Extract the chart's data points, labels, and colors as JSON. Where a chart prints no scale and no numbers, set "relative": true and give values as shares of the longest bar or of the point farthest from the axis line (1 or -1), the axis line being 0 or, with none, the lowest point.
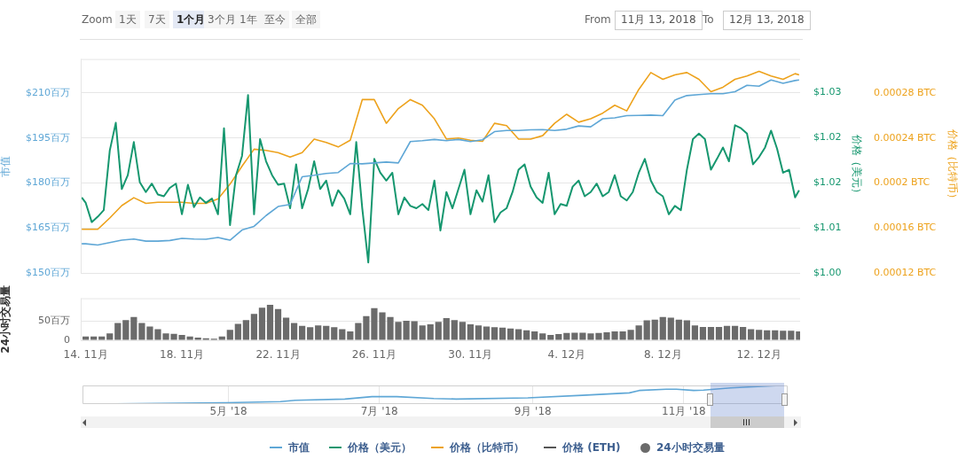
{
  "chart_data": [
    {
      "type": "other",
      "annotations": [
        "Zoom",
        "1天",
        "7天",
        "1个月",
        "3个月",
        "1年",
        "至今",
        "全部",
        "From",
        "11月 13, 2018",
        "To",
        "12月 13, 2018"
      ]
    },
    {
      "type": "line",
      "ylabel": "市值",
      "y2label": "价格（美元）",
      "y3label": "价格（比特币）",
      "xlim": [
        "2018-11-13T19:00",
        "2018-12-13T17:00"
      ],
      "ylim": [
        150,
        221.25
      ],
      "yticks": [
        {
          "value": 150,
          "label": "$150百万"
        },
        {
          "value": 165,
          "label": "$165百万"
        },
        {
          "value": 180,
          "label": "$180百万"
        },
        {
          "value": 195,
          "label": "$195百万"
        },
        {
          "value": 210,
          "label": "$210百万"
        }
      ],
      "y2lim": [
        1.0,
        1.0356
      ],
      "y2ticks": [
        {
          "value": 1.0,
          "label": "$1.00"
        },
        {
          "value": 1.0075,
          "label": "$1.01"
        },
        {
          "value": 1.015,
          "label": "$1.02"
        },
        {
          "value": 1.0225,
          "label": "$1.02"
        },
        {
          "value": 1.03,
          "label": "$1.03"
        }
      ],
      "y3lim": [
        0.00012,
        0.00031
      ],
      "y3ticks": [
        {
          "value": 0.00012,
          "label": "0.00012 BTC"
        },
        {
          "value": 0.00016,
          "label": "0.00016 BTC"
        },
        {
          "value": 0.0002,
          "label": "0.0002 BTC"
        },
        {
          "value": 0.00024,
          "label": "0.00024 BTC"
        },
        {
          "value": 0.00028,
          "label": "0.00028 BTC"
        }
      ],
      "grid": "y",
      "legend": "bottom",
      "marker": "none",
      "tick_labels": "y",
      "x": [
        "2018-11-13T20:00",
        "2018-11-14T00:00",
        "2018-11-14T12:00",
        "2018-11-15T00:00",
        "2018-11-15T12:00",
        "2018-11-16T00:00",
        "2018-11-16T12:00",
        "2018-11-17T00:00",
        "2018-11-17T12:00",
        "2018-11-18T00:00",
        "2018-11-18T12:00",
        "2018-11-19T00:00",
        "2018-11-19T12:00",
        "2018-11-20T00:00",
        "2018-11-20T12:00",
        "2018-11-21T00:00",
        "2018-11-21T12:00",
        "2018-11-22T00:00",
        "2018-11-22T12:00",
        "2018-11-23T00:00",
        "2018-11-23T12:00",
        "2018-11-24T00:00",
        "2018-11-24T12:00",
        "2018-11-25T00:00",
        "2018-11-25T12:00",
        "2018-11-26T00:00",
        "2018-11-26T12:00",
        "2018-11-27T00:00",
        "2018-11-27T12:00",
        "2018-11-28T00:00",
        "2018-11-28T12:00",
        "2018-11-29T00:00",
        "2018-11-29T12:00",
        "2018-11-30T00:00",
        "2018-11-30T12:00",
        "2018-12-01T00:00",
        "2018-12-01T12:00",
        "2018-12-02T00:00",
        "2018-12-02T12:00",
        "2018-12-03T00:00",
        "2018-12-03T12:00",
        "2018-12-04T00:00",
        "2018-12-04T12:00",
        "2018-12-05T00:00",
        "2018-12-05T12:00",
        "2018-12-06T00:00",
        "2018-12-06T12:00",
        "2018-12-07T00:00",
        "2018-12-07T12:00",
        "2018-12-08T00:00",
        "2018-12-08T12:00",
        "2018-12-09T00:00",
        "2018-12-09T12:00",
        "2018-12-10T00:00",
        "2018-12-10T12:00",
        "2018-12-11T00:00",
        "2018-12-11T12:00",
        "2018-12-12T00:00",
        "2018-12-12T12:00",
        "2018-12-13T00:00",
        "2018-12-13T12:00",
        "2018-12-13T16:00"
      ],
      "series": [
        {
          "name": "市值",
          "color": "#5fa7d6",
          "values": [
            159.8,
            159.8,
            159.4,
            160.2,
            161.0,
            161.4,
            160.7,
            160.7,
            160.9,
            161.6,
            161.4,
            161.3,
            161.9,
            161.0,
            164.4,
            165.6,
            169.2,
            172.2,
            172.9,
            182.1,
            182.6,
            183.2,
            183.5,
            186.5,
            186.4,
            186.7,
            187.0,
            186.7,
            193.8,
            194.1,
            194.5,
            194.1,
            194.5,
            193.8,
            194.4,
            197.1,
            197.5,
            197.5,
            197.7,
            197.8,
            197.5,
            197.9,
            199.0,
            198.7,
            201.4,
            201.7,
            202.4,
            202.5,
            202.6,
            202.4,
            207.6,
            209.1,
            209.4,
            209.7,
            209.7,
            210.4,
            212.5,
            212.2,
            214.3,
            213.2,
            214.1,
            214.3
          ]
        },
        {
          "name": "价格（美元）",
          "color": "#16976f",
          "axis": "y2",
          "x": [
            "2018-11-13T20:00",
            "2018-11-14T00:00",
            "2018-11-14T06:00",
            "2018-11-14T12:00",
            "2018-11-14T18:00",
            "2018-11-15T00:00",
            "2018-11-15T06:00",
            "2018-11-15T12:00",
            "2018-11-15T18:00",
            "2018-11-16T00:00",
            "2018-11-16T06:00",
            "2018-11-16T12:00",
            "2018-11-16T18:00",
            "2018-11-17T00:00",
            "2018-11-17T06:00",
            "2018-11-17T12:00",
            "2018-11-17T18:00",
            "2018-11-18T00:00",
            "2018-11-18T06:00",
            "2018-11-18T12:00",
            "2018-11-18T18:00",
            "2018-11-19T00:00",
            "2018-11-19T06:00",
            "2018-11-19T12:00",
            "2018-11-19T18:00",
            "2018-11-20T00:00",
            "2018-11-20T06:00",
            "2018-11-20T12:00",
            "2018-11-20T18:00",
            "2018-11-21T00:00",
            "2018-11-21T06:00",
            "2018-11-21T12:00",
            "2018-11-21T18:00",
            "2018-11-22T00:00",
            "2018-11-22T06:00",
            "2018-11-22T12:00",
            "2018-11-22T18:00",
            "2018-11-23T00:00",
            "2018-11-23T06:00",
            "2018-11-23T12:00",
            "2018-11-23T18:00",
            "2018-11-24T00:00",
            "2018-11-24T06:00",
            "2018-11-24T12:00",
            "2018-11-24T18:00",
            "2018-11-25T00:00",
            "2018-11-25T06:00",
            "2018-11-25T12:00",
            "2018-11-25T18:00",
            "2018-11-26T00:00",
            "2018-11-26T06:00",
            "2018-11-26T12:00",
            "2018-11-26T18:00",
            "2018-11-27T00:00",
            "2018-11-27T06:00",
            "2018-11-27T12:00",
            "2018-11-27T18:00",
            "2018-11-28T00:00",
            "2018-11-28T06:00",
            "2018-11-28T12:00",
            "2018-11-28T18:00",
            "2018-11-29T00:00",
            "2018-11-29T06:00",
            "2018-11-29T12:00",
            "2018-11-29T18:00",
            "2018-11-30T00:00",
            "2018-11-30T06:00",
            "2018-11-30T12:00",
            "2018-11-30T18:00",
            "2018-12-01T00:00",
            "2018-12-01T06:00",
            "2018-12-01T12:00",
            "2018-12-01T18:00",
            "2018-12-02T00:00",
            "2018-12-02T06:00",
            "2018-12-02T12:00",
            "2018-12-02T18:00",
            "2018-12-03T00:00",
            "2018-12-03T06:00",
            "2018-12-03T12:00",
            "2018-12-03T18:00",
            "2018-12-04T00:00",
            "2018-12-04T06:00",
            "2018-12-04T12:00",
            "2018-12-04T18:00",
            "2018-12-05T00:00",
            "2018-12-05T06:00",
            "2018-12-05T12:00",
            "2018-12-05T18:00",
            "2018-12-06T00:00",
            "2018-12-06T06:00",
            "2018-12-06T12:00",
            "2018-12-06T18:00",
            "2018-12-07T00:00",
            "2018-12-07T06:00",
            "2018-12-07T12:00",
            "2018-12-07T18:00",
            "2018-12-08T00:00",
            "2018-12-08T06:00",
            "2018-12-08T12:00",
            "2018-12-08T18:00",
            "2018-12-09T00:00",
            "2018-12-09T06:00",
            "2018-12-09T12:00",
            "2018-12-09T18:00",
            "2018-12-10T00:00",
            "2018-12-10T06:00",
            "2018-12-10T12:00",
            "2018-12-10T18:00",
            "2018-12-11T00:00",
            "2018-12-11T06:00",
            "2018-12-11T12:00",
            "2018-12-11T18:00",
            "2018-12-12T00:00",
            "2018-12-12T06:00",
            "2018-12-12T12:00",
            "2018-12-12T18:00",
            "2018-12-13T00:00",
            "2018-12-13T06:00",
            "2018-12-13T12:00",
            "2018-12-13T16:00"
          ],
          "values": [
            1.0126,
            1.0117,
            1.0085,
            1.0094,
            1.0105,
            1.0204,
            1.025,
            1.014,
            1.0163,
            1.0218,
            1.0151,
            1.0135,
            1.0149,
            1.0131,
            1.0128,
            1.0142,
            1.0149,
            1.0098,
            1.0147,
            1.011,
            1.0126,
            1.0117,
            1.0124,
            1.0098,
            1.0241,
            1.008,
            1.0163,
            1.0195,
            1.0296,
            1.0098,
            1.0223,
            1.0186,
            1.0163,
            1.0147,
            1.0149,
            1.0108,
            1.0181,
            1.0108,
            1.014,
            1.0186,
            1.014,
            1.0154,
            1.0112,
            1.0138,
            1.0124,
            1.0098,
            1.0218,
            1.0108,
            1.0018,
            1.019,
            1.0167,
            1.0154,
            1.0167,
            1.0098,
            1.0126,
            1.0112,
            1.0108,
            1.0115,
            1.0105,
            1.0154,
            1.0071,
            1.0135,
            1.0108,
            1.014,
            1.0172,
            1.0098,
            1.0138,
            1.0119,
            1.0163,
            1.0085,
            1.0101,
            1.0108,
            1.0135,
            1.0172,
            1.0181,
            1.0144,
            1.0126,
            1.0117,
            1.0167,
            1.0098,
            1.0115,
            1.0112,
            1.0144,
            1.0154,
            1.0128,
            1.0135,
            1.0149,
            1.0128,
            1.0135,
            1.0163,
            1.0128,
            1.0121,
            1.0135,
            1.0167,
            1.019,
            1.0154,
            1.0135,
            1.0128,
            1.0098,
            1.0112,
            1.0105,
            1.0172,
            1.0223,
            1.0232,
            1.0223,
            1.0172,
            1.019,
            1.0209,
            1.0186,
            1.0246,
            1.0241,
            1.0232,
            1.0181,
            1.0193,
            1.0209,
            1.0237,
            1.0207,
            1.0167,
            1.0172,
            1.0126,
            1.0138
          ]
        },
        {
          "name": "价格（比特币）",
          "color": "#eda21c",
          "axis": "y3",
          "values": [
            0.000159,
            0.000159,
            0.000159,
            0.000169,
            0.00018,
            0.000187,
            0.000182,
            0.000183,
            0.000183,
            0.000183,
            0.000182,
            0.000182,
            0.000186,
            0.000199,
            0.000215,
            0.00023,
            0.000229,
            0.000227,
            0.000223,
            0.000227,
            0.000239,
            0.000236,
            0.000232,
            0.000238,
            0.000274,
            0.000274,
            0.000253,
            0.000266,
            0.000274,
            0.000269,
            0.000257,
            0.000239,
            0.00024,
            0.000238,
            0.000237,
            0.000253,
            0.000251,
            0.000239,
            0.000239,
            0.000242,
            0.000253,
            0.000261,
            0.000254,
            0.000257,
            0.000262,
            0.000269,
            0.000264,
            0.000283,
            0.000298,
            0.000292,
            0.000296,
            0.000298,
            0.000292,
            0.000281,
            0.000285,
            0.000292,
            0.000295,
            0.000299,
            0.000295,
            0.000292,
            0.000297,
            0.000296
          ]
        },
        {
          "name": "价格 (ETH)",
          "color": "#555555",
          "values": [
            null,
            null,
            null,
            null,
            null,
            null,
            null,
            null,
            null,
            null,
            null,
            null,
            null,
            null,
            null,
            null,
            null,
            null,
            null,
            null,
            null,
            null,
            null,
            null,
            null,
            null,
            null,
            null,
            null,
            null,
            null,
            null,
            null,
            null,
            null,
            null,
            null,
            null,
            null,
            null,
            null,
            null,
            null,
            null,
            null,
            null,
            null,
            null,
            null,
            null,
            null,
            null,
            null,
            null,
            null,
            null,
            null,
            null,
            null,
            null,
            null,
            null
          ]
        }
      ]
    },
    {
      "type": "bar",
      "ylabel": "24小时交易量",
      "xlim": [
        "2018-11-13T19:00",
        "2018-12-13T17:00"
      ],
      "xticks": [
        {
          "value": "2018-11-14",
          "label": "14. 11月"
        },
        {
          "value": "2018-11-18",
          "label": "18. 11月"
        },
        {
          "value": "2018-11-22",
          "label": "22. 11月"
        },
        {
          "value": "2018-11-26",
          "label": "26. 11月"
        },
        {
          "value": "2018-11-30",
          "label": "30. 11月"
        },
        {
          "value": "2018-12-04",
          "label": "4. 12月"
        },
        {
          "value": "2018-12-08",
          "label": "8. 12月"
        },
        {
          "value": "2018-12-12",
          "label": "12. 12月"
        }
      ],
      "ylim": [
        0,
        110
      ],
      "yticks": [
        0,
        {
          "value": 50,
          "label": "50百万"
        }
      ],
      "grid": "y",
      "legend": "bottom",
      "x": [
        "2018-11-14T00:00",
        "2018-11-14T08:00",
        "2018-11-14T16:00",
        "2018-11-15T00:00",
        "2018-11-15T08:00",
        "2018-11-15T16:00",
        "2018-11-16T00:00",
        "2018-11-16T08:00",
        "2018-11-16T16:00",
        "2018-11-17T00:00",
        "2018-11-17T08:00",
        "2018-11-17T16:00",
        "2018-11-18T00:00",
        "2018-11-18T08:00",
        "2018-11-18T16:00",
        "2018-11-19T00:00",
        "2018-11-19T08:00",
        "2018-11-19T16:00",
        "2018-11-20T00:00",
        "2018-11-20T08:00",
        "2018-11-20T16:00",
        "2018-11-21T00:00",
        "2018-11-21T08:00",
        "2018-11-21T16:00",
        "2018-11-22T00:00",
        "2018-11-22T08:00",
        "2018-11-22T16:00",
        "2018-11-23T00:00",
        "2018-11-23T08:00",
        "2018-11-23T16:00",
        "2018-11-24T00:00",
        "2018-11-24T08:00",
        "2018-11-24T16:00",
        "2018-11-25T00:00",
        "2018-11-25T08:00",
        "2018-11-25T16:00",
        "2018-11-26T00:00",
        "2018-11-26T08:00",
        "2018-11-26T16:00",
        "2018-11-27T00:00",
        "2018-11-27T08:00",
        "2018-11-27T16:00",
        "2018-11-28T00:00",
        "2018-11-28T08:00",
        "2018-11-28T16:00",
        "2018-11-29T00:00",
        "2018-11-29T08:00",
        "2018-11-29T16:00",
        "2018-11-30T00:00",
        "2018-11-30T08:00",
        "2018-11-30T16:00",
        "2018-12-01T00:00",
        "2018-12-01T08:00",
        "2018-12-01T16:00",
        "2018-12-02T00:00",
        "2018-12-02T08:00",
        "2018-12-02T16:00",
        "2018-12-03T00:00",
        "2018-12-03T08:00",
        "2018-12-03T16:00",
        "2018-12-04T00:00",
        "2018-12-04T08:00",
        "2018-12-04T16:00",
        "2018-12-05T00:00",
        "2018-12-05T08:00",
        "2018-12-05T16:00",
        "2018-12-06T00:00",
        "2018-12-06T08:00",
        "2018-12-06T16:00",
        "2018-12-07T00:00",
        "2018-12-07T08:00",
        "2018-12-07T16:00",
        "2018-12-08T00:00",
        "2018-12-08T08:00",
        "2018-12-08T16:00",
        "2018-12-09T00:00",
        "2018-12-09T08:00",
        "2018-12-09T16:00",
        "2018-12-10T00:00",
        "2018-12-10T08:00",
        "2018-12-10T16:00",
        "2018-12-11T00:00",
        "2018-12-11T08:00",
        "2018-12-11T16:00",
        "2018-12-12T00:00",
        "2018-12-12T08:00",
        "2018-12-12T16:00",
        "2018-12-13T00:00",
        "2018-12-13T08:00",
        "2018-12-13T16:00"
      ],
      "series": [
        {
          "name": "24小时交易量",
          "color": "#6b6b6b",
          "values": [
            10,
            10,
            10,
            18,
            45,
            53,
            61,
            45,
            36,
            29,
            18,
            17,
            14,
            10,
            7,
            5,
            4,
            10,
            27,
            43,
            53,
            69,
            85,
            93,
            82,
            59,
            45,
            38,
            34,
            39,
            38,
            34,
            29,
            23,
            45,
            63,
            84,
            73,
            61,
            48,
            51,
            50,
            39,
            42,
            48,
            58,
            53,
            48,
            42,
            39,
            36,
            34,
            33,
            31,
            29,
            26,
            23,
            18,
            14,
            16,
            19,
            20,
            20,
            18,
            19,
            21,
            23,
            23,
            27,
            39,
            52,
            54,
            61,
            59,
            54,
            52,
            39,
            35,
            35,
            35,
            38,
            38,
            35,
            29,
            27,
            26,
            26,
            25,
            25,
            23
          ]
        }
      ]
    },
    {
      "type": "line",
      "relative": true,
      "color": "#5fa7d6",
      "marker": "none",
      "grid": "x",
      "tick_labels": "x",
      "xlim": [
        "2018-03-03",
        "2018-12-13"
      ],
      "xticks": [
        {
          "value": "2018-05-01",
          "label": "5月 '18"
        },
        {
          "value": "2018-07-01",
          "label": "7月 '18"
        },
        {
          "value": "2018-09-01",
          "label": "9月 '18"
        },
        {
          "value": "2018-11-01",
          "label": "11月 '18"
        }
      ],
      "x": [
        "2018-03-07",
        "2018-04-29",
        "2018-05-22",
        "2018-05-28",
        "2018-06-17",
        "2018-06-28",
        "2018-07-08",
        "2018-07-23",
        "2018-08-01",
        "2018-08-30",
        "2018-09-21",
        "2018-10-10",
        "2018-10-14",
        "2018-10-25",
        "2018-10-29",
        "2018-11-05",
        "2018-11-09",
        "2018-11-20",
        "2018-12-10"
      ],
      "values": [
        0,
        0.07,
        0.13,
        0.2,
        0.27,
        0.4,
        0.4,
        0.3,
        0.27,
        0.33,
        0.47,
        0.6,
        0.73,
        0.8,
        0.8,
        0.73,
        0.75,
        0.87,
        1
      ]
    }
  ]
}
